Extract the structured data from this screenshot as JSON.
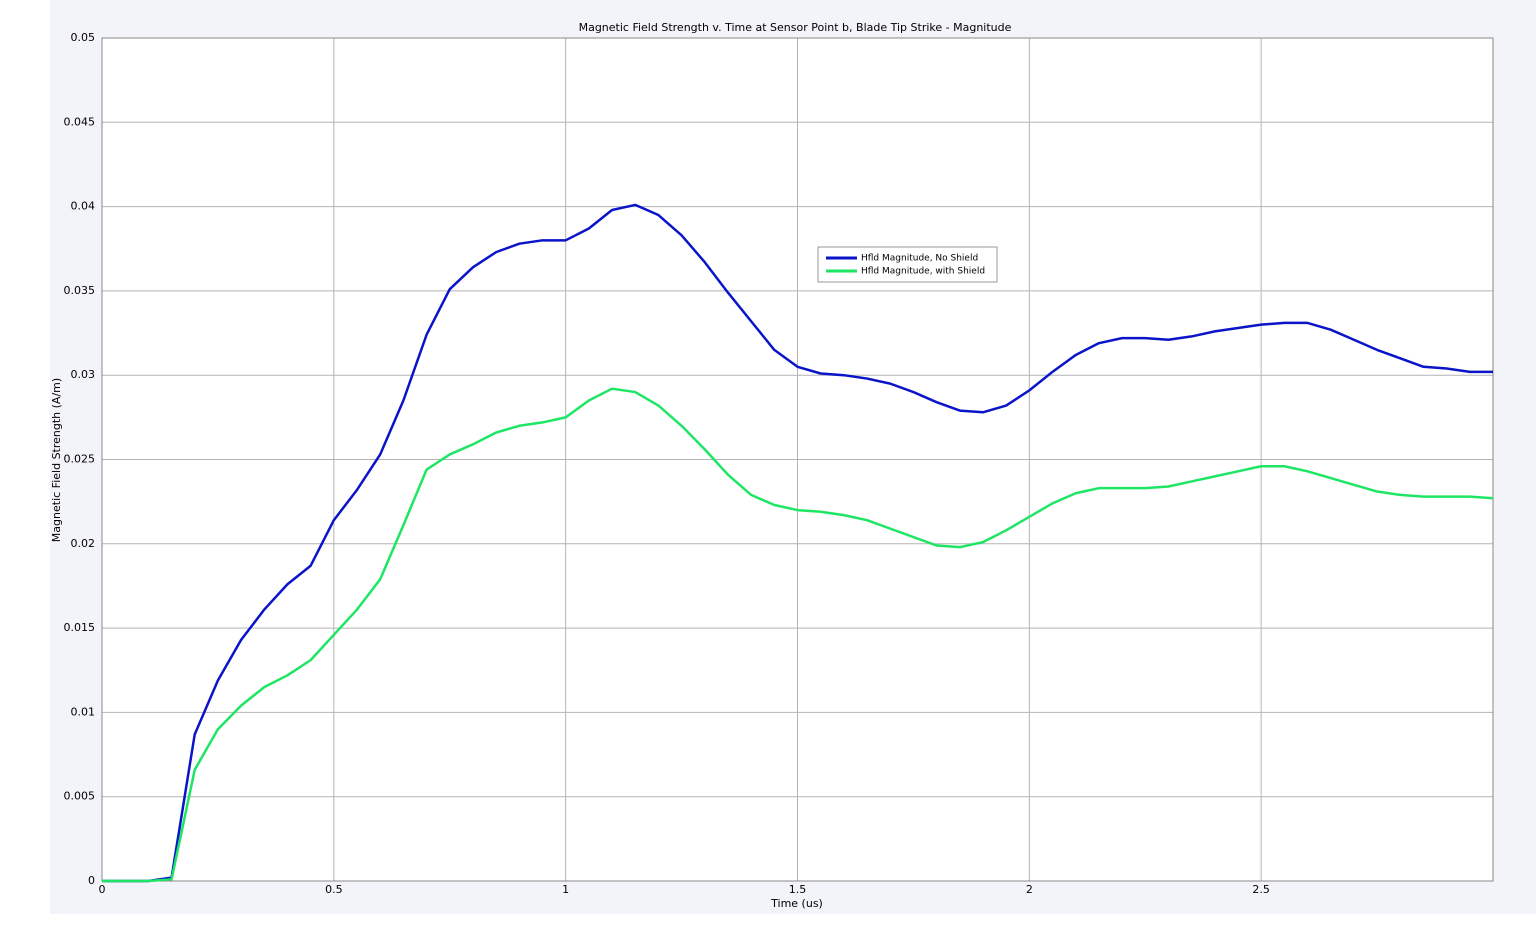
{
  "chart_data": {
    "type": "line",
    "title": "Magnetic Field Strength v. Time at Sensor Point b, Blade Tip Strike - Magnitude",
    "x_label": "Time (us)",
    "y_label": "Magnetic Field Strength (A/m)",
    "x": [
      0,
      0.05,
      0.1,
      0.15,
      0.2,
      0.25,
      0.3,
      0.35,
      0.4,
      0.45,
      0.5,
      0.55,
      0.6,
      0.65,
      0.7,
      0.75,
      0.8,
      0.85,
      0.9,
      0.95,
      1,
      1.05,
      1.1,
      1.15,
      1.2,
      1.25,
      1.3,
      1.35,
      1.4,
      1.45,
      1.5,
      1.55,
      1.6,
      1.65,
      1.7,
      1.75,
      1.8,
      1.85,
      1.9,
      1.95,
      2,
      2.05,
      2.1,
      2.15,
      2.2,
      2.25,
      2.3,
      2.35,
      2.4,
      2.45,
      2.5,
      2.55,
      2.6,
      2.65,
      2.7,
      2.75,
      2.8,
      2.85,
      2.9,
      2.95,
      3
    ],
    "series": [
      {
        "name": "Hfld Magnitude, No Shield",
        "color": "#0a14c8",
        "values": [
          0,
          0,
          0,
          0.0002,
          0.0087,
          0.0119,
          0.0143,
          0.0161,
          0.0176,
          0.0187,
          0.0214,
          0.0232,
          0.0253,
          0.0285,
          0.0324,
          0.0351,
          0.0364,
          0.0373,
          0.0378,
          0.038,
          0.038,
          0.0387,
          0.0398,
          0.0401,
          0.0395,
          0.0383,
          0.0367,
          0.0349,
          0.0332,
          0.0315,
          0.0305,
          0.0301,
          0.03,
          0.0298,
          0.0295,
          0.029,
          0.0284,
          0.0279,
          0.0278,
          0.0282,
          0.0291,
          0.0302,
          0.0312,
          0.0319,
          0.0322,
          0.0322,
          0.0321,
          0.0323,
          0.0326,
          0.0328,
          0.033,
          0.0331,
          0.0331,
          0.0327,
          0.0321,
          0.0315,
          0.031,
          0.0305,
          0.0304,
          0.0302,
          0.0302
        ]
      },
      {
        "name": "Hfld Magnitude, with Shield",
        "color": "#1ee664",
        "values": [
          0,
          0,
          0,
          0.0001,
          0.0066,
          0.009,
          0.0104,
          0.0115,
          0.0122,
          0.0131,
          0.0146,
          0.0161,
          0.0179,
          0.0211,
          0.0244,
          0.0253,
          0.0259,
          0.0266,
          0.027,
          0.0272,
          0.0275,
          0.0285,
          0.0292,
          0.029,
          0.0282,
          0.027,
          0.0256,
          0.0241,
          0.0229,
          0.0223,
          0.022,
          0.0219,
          0.0217,
          0.0214,
          0.0209,
          0.0204,
          0.0199,
          0.0198,
          0.0201,
          0.0208,
          0.0216,
          0.0224,
          0.023,
          0.0233,
          0.0233,
          0.0233,
          0.0234,
          0.0237,
          0.024,
          0.0243,
          0.0246,
          0.0246,
          0.0243,
          0.0239,
          0.0235,
          0.0231,
          0.0229,
          0.0228,
          0.0228,
          0.0228,
          0.0227
        ]
      }
    ],
    "xlim": [
      0,
      3
    ],
    "xticks": [
      0,
      0.5,
      1,
      1.5,
      2,
      2.5
    ],
    "ylim": [
      0,
      0.05
    ],
    "yticks": [
      0,
      0.005,
      0.01,
      0.015,
      0.02,
      0.025,
      0.03,
      0.035,
      0.04,
      0.045,
      0.05
    ],
    "grid": true
  }
}
